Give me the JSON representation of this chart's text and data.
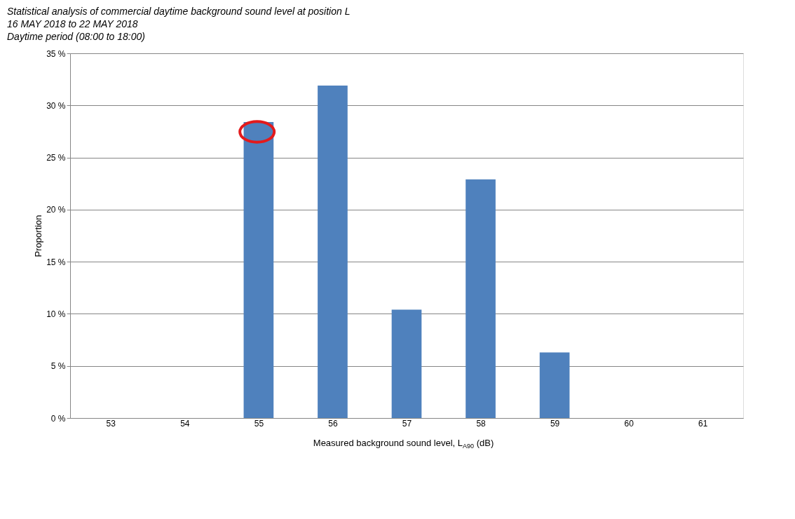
{
  "chart_data": {
    "type": "bar",
    "subtitle": [
      "Statistical analysis of commercial daytime background sound level at position L",
      "16 MAY 2018 to 22 MAY 2018",
      "Daytime period (08:00 to 18:00)"
    ],
    "xlabel": "Measured background sound level, L$_{A90}$ (dB)",
    "ylabel": "Proportion",
    "categories": [
      "53",
      "54",
      "55",
      "56",
      "57",
      "58",
      "59",
      "60",
      "61"
    ],
    "values": [
      0,
      0,
      28.4,
      31.9,
      10.4,
      22.9,
      6.3,
      0,
      0
    ],
    "color": "#4f81bd",
    "ylim": [
      0,
      35
    ],
    "yticks": [
      {
        "value": 0,
        "label": "0 %"
      },
      {
        "value": 5,
        "label": "5 %"
      },
      {
        "value": 10,
        "label": "10 %"
      },
      {
        "value": 15,
        "label": "15 %"
      },
      {
        "value": 20,
        "label": "20 %"
      },
      {
        "value": 25,
        "label": "25 %"
      },
      {
        "value": 30,
        "label": "30 %"
      },
      {
        "value": 35,
        "label": "35 %"
      }
    ],
    "grid": "y"
  }
}
